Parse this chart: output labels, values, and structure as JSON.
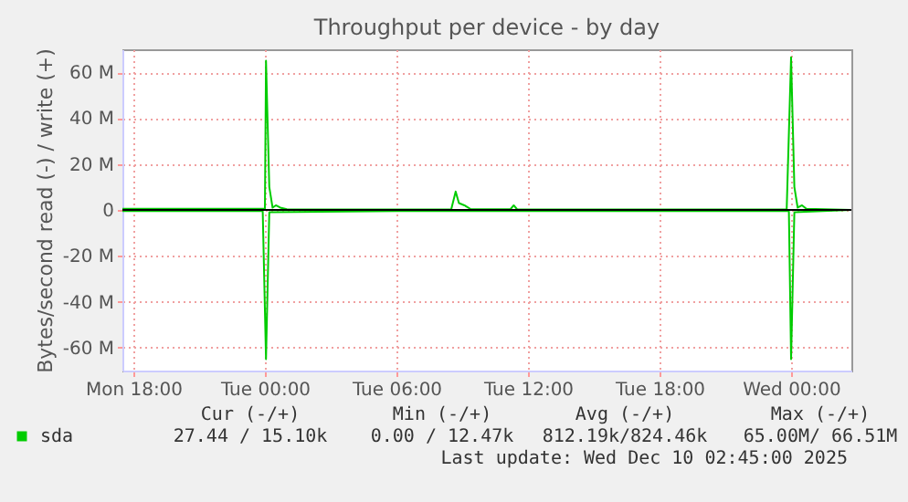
{
  "chart_data": {
    "type": "line",
    "title": "Throughput per device - by day",
    "ylabel": "Bytes/second read (-) / write (+)",
    "x": [
      "2025-12-08T17:30",
      "2025-12-09T00:00",
      "2025-12-09T00:03",
      "2025-12-09T00:12",
      "2025-12-09T00:21",
      "2025-12-09T00:30",
      "2025-12-09T00:42",
      "2025-12-09T01:00",
      "2025-12-09T02:00",
      "2025-12-09T08:30",
      "2025-12-09T08:42",
      "2025-12-09T08:51",
      "2025-12-09T09:06",
      "2025-12-09T09:24",
      "2025-12-09T11:12",
      "2025-12-09T11:21",
      "2025-12-09T11:30",
      "2025-12-09T16:00",
      "2025-12-09T23:48",
      "2025-12-10T00:00",
      "2025-12-10T00:09",
      "2025-12-10T00:18",
      "2025-12-10T00:30",
      "2025-12-10T00:42",
      "2025-12-10T02:45"
    ],
    "series": [
      {
        "name": "sda",
        "color": "#00cc00",
        "values": [
          0.5,
          0.5,
          65,
          10,
          1,
          2,
          1,
          0.3,
          0.2,
          0.3,
          8,
          3,
          2,
          0.3,
          0.3,
          2,
          0.3,
          0.2,
          0.3,
          66.5,
          10,
          1,
          2,
          0.5,
          0
        ]
      },
      {
        "color": "#00cc00",
        "x": [
          "2025-12-08T17:30",
          "2025-12-08T23:54",
          "2025-12-09T00:03",
          "2025-12-09T00:12",
          "2025-12-09T06:00",
          "2025-12-09T23:54",
          "2025-12-10T00:00",
          "2025-12-10T00:09",
          "2025-12-10T02:45"
        ],
        "values": [
          -0.5,
          -0.5,
          -65,
          -1,
          -0.5,
          -0.5,
          -65,
          -1,
          0
        ]
      }
    ],
    "xlim": [
      "2025-12-08T17:30",
      "2025-12-10T02:45"
    ],
    "xticks": [
      {
        "value": "2025-12-08T18:00",
        "label": "Mon 18:00"
      },
      {
        "value": "2025-12-09T00:00",
        "label": "Tue 00:00"
      },
      {
        "value": "2025-12-09T06:00",
        "label": "Tue 06:00"
      },
      {
        "value": "2025-12-09T12:00",
        "label": "Tue 12:00"
      },
      {
        "value": "2025-12-09T18:00",
        "label": "Tue 18:00"
      },
      {
        "value": "2025-12-10T00:00",
        "label": "Wed 00:00"
      }
    ],
    "ylim": [
      -70,
      70
    ],
    "yticks": [
      {
        "value": -60,
        "label": "-60 M"
      },
      {
        "value": -40,
        "label": "-40 M"
      },
      {
        "value": -20,
        "label": "-20 M"
      },
      0,
      {
        "value": 20,
        "label": "20 M"
      },
      {
        "value": 40,
        "label": "40 M"
      },
      {
        "value": 60,
        "label": "60 M"
      }
    ],
    "ref_lines": [
      {
        "axis": "y",
        "value": 0,
        "color": "#000000"
      }
    ],
    "grid": true,
    "legend": "bottom",
    "annotations": [
      "Cur (-/+)",
      "Min (-/+)",
      "Avg (-/+)",
      "Max (-/+)",
      "27.44 / 15.10k",
      "0.00 / 12.47k",
      "812.19k/824.46k",
      "65.00M/ 66.51M",
      "Last update: Wed Dec 10 02:45:00 2025"
    ]
  }
}
